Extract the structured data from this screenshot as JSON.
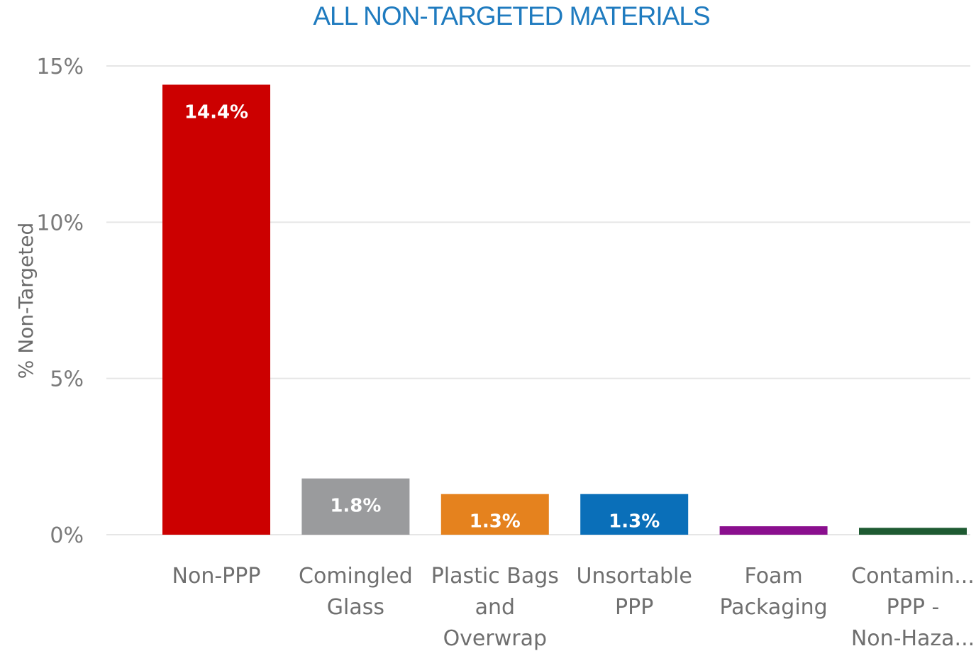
{
  "chart_data": {
    "type": "bar",
    "title": "ALL NON-TARGETED MATERIALS",
    "ylabel": "% Non-Targeted",
    "xlabel": "",
    "ylim": [
      0,
      15
    ],
    "yticks": [
      {
        "value": 0,
        "label": "0%"
      },
      {
        "value": 5,
        "label": "5%"
      },
      {
        "value": 10,
        "label": "10%"
      },
      {
        "value": 15,
        "label": "15%"
      }
    ],
    "grid": true,
    "categories": [
      {
        "lines": [
          "Non-PPP"
        ]
      },
      {
        "lines": [
          "Comingled",
          "Glass"
        ]
      },
      {
        "lines": [
          "Plastic Bags",
          "and",
          "Overwrap"
        ]
      },
      {
        "lines": [
          "Unsortable",
          "PPP"
        ]
      },
      {
        "lines": [
          "Foam",
          "Packaging"
        ]
      },
      {
        "lines": [
          "Contamin...",
          "PPP -",
          "Non-Haza..."
        ]
      }
    ],
    "values": [
      14.4,
      1.8,
      1.3,
      1.3,
      0.27,
      0.22
    ],
    "data_labels": [
      "14.4%",
      "1.8%",
      "1.3%",
      "1.3%",
      "",
      ""
    ],
    "colors": [
      "#cc0000",
      "#9a9b9d",
      "#e5821e",
      "#0a6fb9",
      "#8a0f8e",
      "#1e5a32"
    ]
  }
}
